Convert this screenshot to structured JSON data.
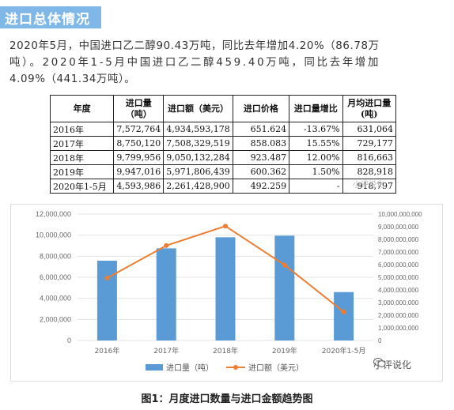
{
  "section_title": "进口总体情况",
  "paragraph": {
    "line1": "2020年5月，中国进口乙二醇90.43万吨，同比去年增加4.20%（86.78万",
    "line2": "吨）。2020年1-5月中国进口乙二醇459.40万吨，同比去年增加",
    "line3": "4.09%（441.34万吨）。"
  },
  "table": {
    "headers": [
      "年度",
      "进口量（吨）",
      "进口额（美元）",
      "进口价格",
      "进口量增比",
      "月均进口量(吨)"
    ],
    "rows": [
      [
        "2016年",
        "7,572,764",
        "4,934,593,178",
        "651.624",
        "-13.67%",
        "631,064"
      ],
      [
        "2017年",
        "8,750,120",
        "7,508,329,519",
        "858.083",
        "15.55%",
        "729,177"
      ],
      [
        "2018年",
        "9,799,956",
        "9,050,132,284",
        "923.487",
        "12.00%",
        "816,663"
      ],
      [
        "2019年",
        "9,947,016",
        "5,971,806,439",
        "600.362",
        "1.50%",
        "828,918"
      ],
      [
        "2020年1-5月",
        "4,593,986",
        "2,261,428,900",
        "492.259",
        "-",
        "918,797"
      ]
    ]
  },
  "table_watermark": "小评说化",
  "chart_data": {
    "type": "bar",
    "categories": [
      "2016年",
      "2017年",
      "2018年",
      "2019年",
      "2020年1-5月"
    ],
    "series": [
      {
        "name": "进口量（吨）",
        "type": "bar",
        "axis": "left",
        "color": "#5b9bd5",
        "values": [
          7572764,
          8750120,
          9799956,
          9947016,
          4593986
        ]
      },
      {
        "name": "进口额（美元）",
        "type": "line",
        "axis": "right",
        "color": "#ed7d31",
        "values": [
          4934593178,
          7508329519,
          9050132284,
          5971806439,
          2261428900
        ]
      }
    ],
    "ylim_left": [
      0,
      12000000
    ],
    "yticks_left": [
      "0",
      "2,000,000",
      "4,000,000",
      "6,000,000",
      "8,000,000",
      "10,000,000",
      "12,000,000"
    ],
    "ylim_right": [
      0,
      10000000000
    ],
    "yticks_right": [
      "0",
      "1,000,000,000",
      "2,000,000,000",
      "3,000,000,000",
      "4,000,000,000",
      "5,000,000,000",
      "6,000,000,000",
      "7,000,000,000",
      "8,000,000,000",
      "9,000,000,000",
      "10,000,000,000"
    ],
    "grid": true,
    "legend_position": "bottom"
  },
  "chart_watermark": "小评说化",
  "caption": "图1：月度进口数量与进口金额趋势图"
}
